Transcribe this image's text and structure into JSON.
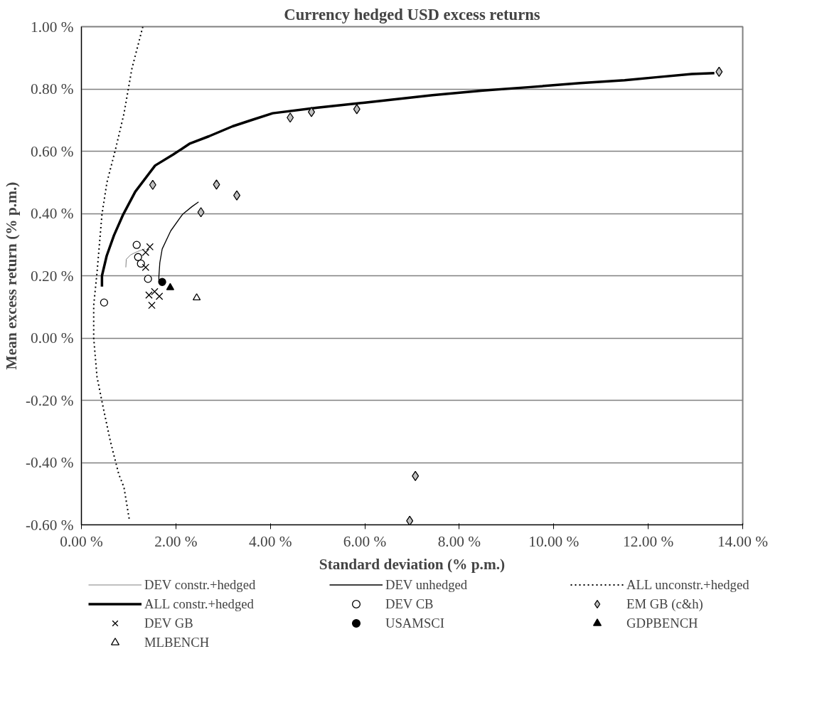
{
  "chart_data": {
    "type": "scatter",
    "title": "Currency hedged USD excess returns",
    "xlabel": "Standard deviation (% p.m.)",
    "ylabel": "Mean excess return (% p.m.)",
    "xlim": [
      0,
      14
    ],
    "ylim": [
      -0.6,
      1.0
    ],
    "xticks": [
      {
        "value": 0,
        "label": "0.00 %"
      },
      {
        "value": 2,
        "label": "2.00 %"
      },
      {
        "value": 4,
        "label": "4.00 %"
      },
      {
        "value": 6,
        "label": "6.00 %"
      },
      {
        "value": 8,
        "label": "8.00 %"
      },
      {
        "value": 10,
        "label": "10.00 %"
      },
      {
        "value": 12,
        "label": "12.00 %"
      },
      {
        "value": 14,
        "label": "14.00 %"
      }
    ],
    "yticks": [
      {
        "value": -0.6,
        "label": "-0.60 %"
      },
      {
        "value": -0.4,
        "label": "-0.40 %"
      },
      {
        "value": -0.2,
        "label": "-0.20 %"
      },
      {
        "value": 0,
        "label": "0.00 %"
      },
      {
        "value": 0.2,
        "label": "0.20 %"
      },
      {
        "value": 0.4,
        "label": "0.40 %"
      },
      {
        "value": 0.6,
        "label": "0.60 %"
      },
      {
        "value": 0.8,
        "label": "0.80 %"
      },
      {
        "value": 1.0,
        "label": "1.00 %"
      }
    ],
    "grid": "y",
    "legend": "bottom",
    "series": [
      {
        "name": "DEV constr.+hedged",
        "type": "line",
        "line_style": "solid",
        "color": "#808080",
        "x": [
          0.94,
          0.95,
          1.04,
          1.19,
          1.34
        ],
        "values": [
          0.227,
          0.253,
          0.267,
          0.278,
          0.286
        ]
      },
      {
        "name": "DEV unhedged",
        "type": "line",
        "line_style": "solid",
        "color": "#000000",
        "x": [
          1.64,
          1.64,
          1.66,
          1.71,
          1.89,
          2.14,
          2.34,
          2.48
        ],
        "values": [
          0.18,
          0.198,
          0.242,
          0.286,
          0.344,
          0.397,
          0.422,
          0.437
        ]
      },
      {
        "name": "ALL unconstr.+hedged",
        "type": "line",
        "line_style": "dotted",
        "color": "#000000",
        "x": [
          1.3,
          1.07,
          0.9,
          0.72,
          0.54,
          0.435,
          0.33,
          0.26,
          0.26,
          0.33,
          0.47,
          0.615,
          0.79,
          0.9,
          1.02
        ],
        "values": [
          1.0,
          0.866,
          0.72,
          0.605,
          0.5,
          0.397,
          0.21,
          0.105,
          0.0,
          -0.125,
          -0.23,
          -0.333,
          -0.437,
          -0.479,
          -0.589
        ]
      },
      {
        "name": "ALL constr.+hedged",
        "type": "line",
        "line_style": "solid",
        "color": "#000000",
        "x": [
          0.435,
          0.435,
          0.535,
          0.69,
          0.885,
          1.14,
          1.56,
          1.94,
          2.3,
          2.7,
          3.2,
          3.6,
          4.05,
          5.0,
          6.0,
          7.43,
          8.5,
          9.5,
          10.56,
          11.5,
          12.2,
          12.92,
          13.4
        ],
        "values": [
          0.165,
          0.2,
          0.264,
          0.33,
          0.397,
          0.47,
          0.554,
          0.589,
          0.625,
          0.648,
          0.68,
          0.7,
          0.722,
          0.74,
          0.756,
          0.78,
          0.795,
          0.806,
          0.819,
          0.828,
          0.838,
          0.848,
          0.851
        ]
      },
      {
        "name": "DEV CB",
        "marker": "circle",
        "color": "#ffffff",
        "x": [
          1.17,
          1.2,
          1.26,
          1.41,
          0.48
        ],
        "values": [
          0.299,
          0.26,
          0.239,
          0.19,
          0.114
        ]
      },
      {
        "name": "EM GB (c&h)",
        "marker": "diamond",
        "color": "#c0c0c0",
        "x": [
          13.5,
          4.42,
          4.87,
          5.83,
          1.51,
          2.86,
          3.29,
          2.53,
          7.07,
          6.95
        ],
        "values": [
          0.855,
          0.708,
          0.726,
          0.735,
          0.492,
          0.493,
          0.458,
          0.404,
          -0.443,
          -0.587
        ]
      },
      {
        "name": "DEV GB",
        "marker": "x",
        "color": "#000000",
        "x": [
          1.45,
          1.36,
          1.36,
          1.55,
          1.43,
          1.65,
          1.49
        ],
        "values": [
          0.293,
          0.275,
          0.227,
          0.149,
          0.138,
          0.134,
          0.105
        ]
      },
      {
        "name": "USAMSCI",
        "marker": "circle",
        "color": "#000000",
        "x": [
          1.71
        ],
        "values": [
          0.18
        ]
      },
      {
        "name": "GDPBENCH",
        "marker": "triangle",
        "color": "#000000",
        "x": [
          1.88
        ],
        "values": [
          0.162
        ]
      },
      {
        "name": "MLBENCH",
        "marker": "triangle",
        "color": "#ffffff",
        "x": [
          2.44
        ],
        "values": [
          0.129
        ]
      }
    ]
  }
}
